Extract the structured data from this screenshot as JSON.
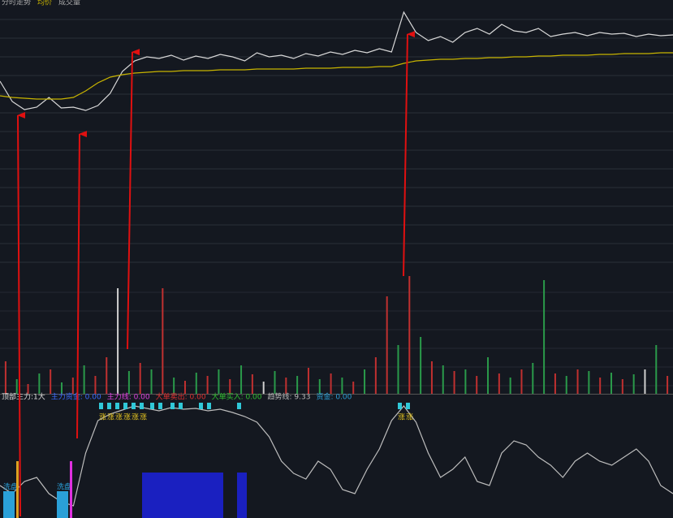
{
  "chart_data": [
    {
      "type": "line",
      "panel": "price",
      "legend_texts": [
        "分时走势",
        "均价",
        "成交量"
      ],
      "ylim": [
        0,
        340
      ],
      "series": [
        {
          "name": "价格",
          "color": "#d8d8d8",
          "values": [
            240,
            215,
            205,
            208,
            220,
            207,
            208,
            204,
            210,
            225,
            252,
            265,
            270,
            268,
            272,
            266,
            271,
            268,
            273,
            270,
            265,
            275,
            270,
            272,
            268,
            274,
            271,
            276,
            273,
            278,
            275,
            280,
            276,
            325,
            300,
            290,
            295,
            288,
            300,
            305,
            298,
            310,
            302,
            300,
            305,
            295,
            298,
            300,
            296,
            300,
            298,
            299,
            295,
            298,
            296,
            297
          ]
        },
        {
          "name": "均价",
          "color": "#c8b400",
          "values": [
            222,
            220,
            219,
            218,
            218,
            218,
            220,
            228,
            238,
            245,
            248,
            250,
            251,
            252,
            252,
            253,
            253,
            253,
            254,
            254,
            254,
            255,
            255,
            255,
            255,
            256,
            256,
            256,
            257,
            257,
            257,
            258,
            258,
            262,
            265,
            266,
            267,
            267,
            268,
            268,
            269,
            269,
            270,
            270,
            271,
            271,
            272,
            272,
            272,
            273,
            273,
            274,
            274,
            274,
            275,
            275
          ]
        }
      ]
    },
    {
      "type": "bar",
      "panel": "volume",
      "ylim": [
        0,
        145
      ],
      "values": [
        40,
        18,
        12,
        25,
        30,
        14,
        20,
        35,
        22,
        45,
        130,
        28,
        38,
        30,
        130,
        20,
        16,
        26,
        22,
        30,
        18,
        35,
        24,
        15,
        28,
        20,
        22,
        32,
        18,
        25,
        20,
        15,
        30,
        45,
        120,
        60,
        145,
        70,
        40,
        35,
        28,
        30,
        22,
        45,
        25,
        20,
        30,
        38,
        140,
        25,
        22,
        30,
        28,
        20,
        26,
        18,
        24,
        30,
        60,
        22
      ],
      "colors": [
        "#c03030",
        "#2a9a4a",
        "#c03030",
        "#2a9a4a",
        "#c03030",
        "#2a9a4a",
        "#c03030",
        "#2a9a4a",
        "#c03030",
        "#c03030",
        "#cfcfcf",
        "#2a9a4a",
        "#c03030",
        "#2a9a4a",
        "#c03030",
        "#2a9a4a",
        "#c03030",
        "#2a9a4a",
        "#c03030",
        "#2a9a4a",
        "#c03030",
        "#2a9a4a",
        "#c03030",
        "#cfcfcf",
        "#2a9a4a",
        "#c03030",
        "#2a9a4a",
        "#c03030",
        "#2a9a4a",
        "#c03030",
        "#2a9a4a",
        "#c03030",
        "#2a9a4a",
        "#c03030",
        "#c03030",
        "#2a9a4a",
        "#c03030",
        "#2a9a4a",
        "#c03030",
        "#2a9a4a",
        "#c03030",
        "#2a9a4a",
        "#c03030",
        "#2a9a4a",
        "#c03030",
        "#2a9a4a",
        "#c03030",
        "#2a9a4a",
        "#2a9a4a",
        "#c03030",
        "#2a9a4a",
        "#c03030",
        "#2a9a4a",
        "#c03030",
        "#2a9a4a",
        "#c03030",
        "#2a9a4a",
        "#cfcfcf",
        "#2a9a4a",
        "#c03030"
      ]
    },
    {
      "type": "line",
      "panel": "indicator",
      "header": [
        {
          "text": "顶部主力:1大",
          "color": "#dddddd"
        },
        {
          "text": "主力资金: 0.00",
          "color": "#3b6bff"
        },
        {
          "text": "主力线: 0.00",
          "color": "#e040e0"
        },
        {
          "text": "大单卖出: 0.00",
          "color": "#e03030"
        },
        {
          "text": "大单买入: 0.00",
          "color": "#30c030"
        },
        {
          "text": "趋势线: 9.33",
          "color": "#bbbbbb"
        },
        {
          "text": "资金: 0.00",
          "color": "#2a9fd6"
        }
      ],
      "signal_texts": {
        "rise": "涨",
        "wash": "洗盘"
      },
      "ylim": [
        0,
        148
      ],
      "series": [
        {
          "name": "趋势线",
          "color": "#bdbdbd",
          "values": [
            40,
            30,
            45,
            50,
            30,
            20,
            15,
            80,
            120,
            128,
            133,
            138,
            135,
            132,
            136,
            134,
            135,
            132,
            134,
            130,
            125,
            118,
            100,
            70,
            55,
            48,
            70,
            60,
            35,
            30,
            60,
            85,
            120,
            138,
            118,
            80,
            50,
            60,
            75,
            45,
            40,
            80,
            95,
            90,
            75,
            65,
            50,
            70,
            80,
            70,
            65,
            75,
            85,
            70,
            40,
            30
          ]
        }
      ]
    }
  ]
}
